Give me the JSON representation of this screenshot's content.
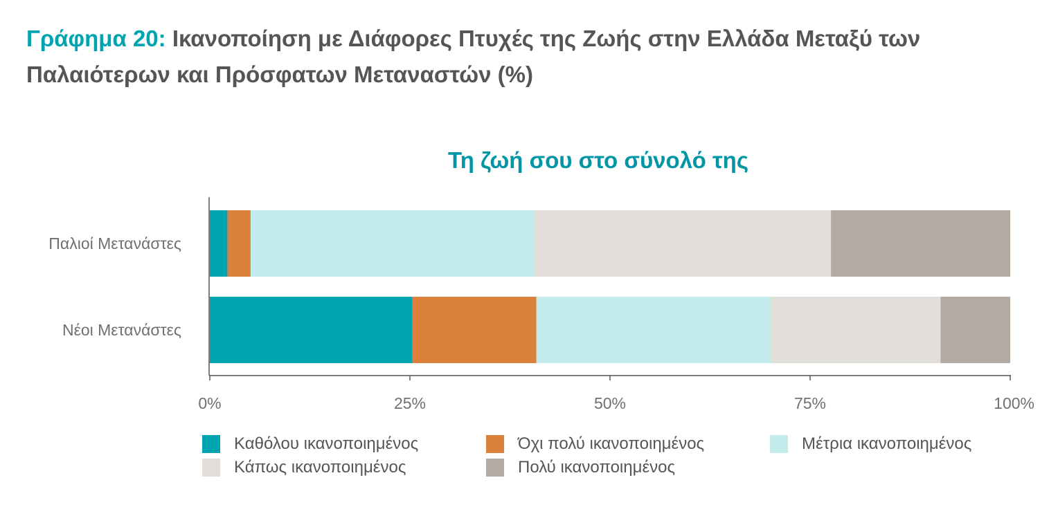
{
  "heading": {
    "prefix": "Γράφημα 20:",
    "text": "Ικανοποίηση με Διάφορες Πτυχές της Ζωής στην Ελλάδα Μεταξύ των Παλαιότερων και Πρόσφατων Μεταναστών (%)"
  },
  "colors": {
    "accent": "#00a3b0",
    "series": [
      "#00a3b0",
      "#db813b",
      "#c3ebeb",
      "#e1ddd9",
      "#b3aba1"
    ],
    "axis": "#555555"
  },
  "chart_data": {
    "type": "bar",
    "orientation": "horizontal",
    "stacked": true,
    "normalized": true,
    "title": "Τη ζωή σου στο σύνολό της",
    "categories": [
      "Παλιοί Μετανάστες",
      "Νέοι Μετανάστες"
    ],
    "series": [
      {
        "name": "Καθόλου ικανοποιημένος",
        "values": [
          2.2,
          25.3
        ]
      },
      {
        "name": "Όχι πολύ ικανοποιημένος",
        "values": [
          2.9,
          15.5
        ]
      },
      {
        "name": "Μέτρια ικανοποιημένος",
        "values": [
          35.4,
          29.3
        ]
      },
      {
        "name": "Κάπως ικανοποιημένος",
        "values": [
          37.1,
          21.2
        ]
      },
      {
        "name": "Πολύ ικανοποιημένος",
        "values": [
          22.4,
          8.7
        ]
      }
    ],
    "xlim": [
      0,
      100
    ],
    "xticks": [
      "0%",
      "25%",
      "50%",
      "75%",
      "100%"
    ],
    "xlabel": "",
    "ylabel": "",
    "grid": false,
    "legend_position": "bottom"
  }
}
